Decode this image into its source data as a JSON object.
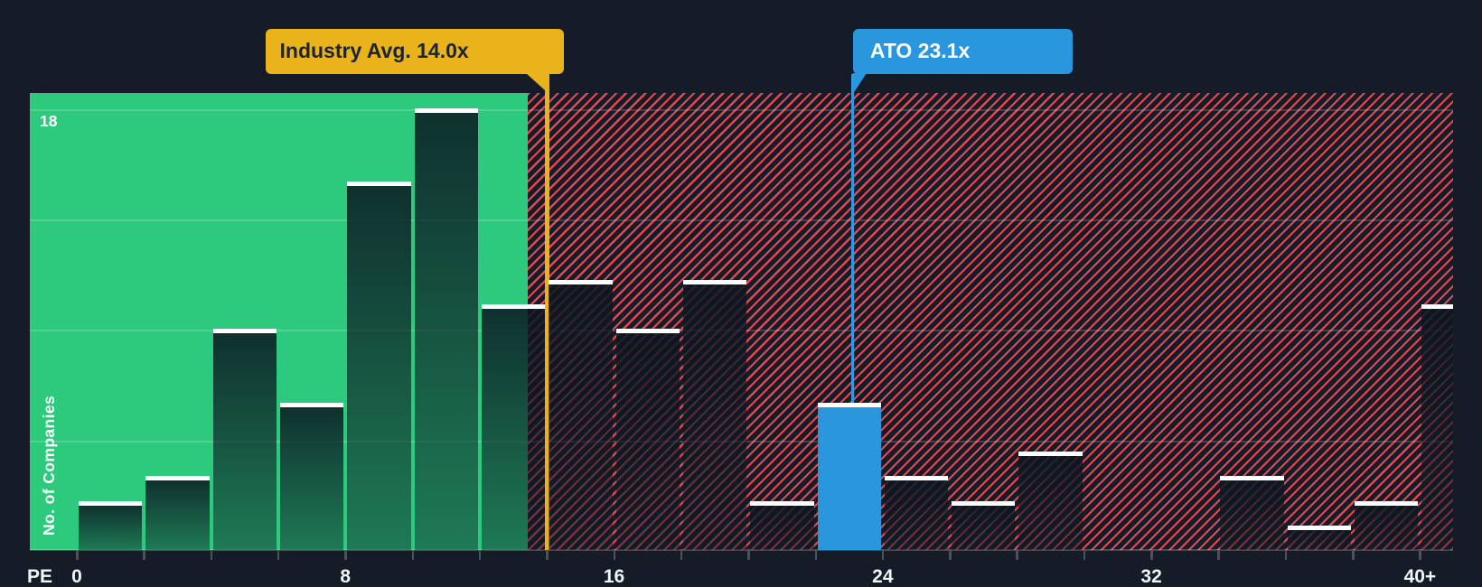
{
  "colors": {
    "background": "#151c28",
    "green_zone": "#2dc97c",
    "hatch_line_red": "#ee4b52",
    "bar_overlay_top": "rgba(10,22,33,0.85)",
    "bar_overlay_bottom": "rgba(12,26,36,0.45)",
    "bar_top_stroke": "#ffffff",
    "highlight_blue": "#2a96dd",
    "marker_yellow": "#eab31c",
    "callout_yellow_text": "#1b2433",
    "axis_text": "#f2f5f7",
    "tick_mark": "#49525e"
  },
  "y_axis": {
    "label": "No. of Companies",
    "top_label": "18",
    "max": 18
  },
  "x_axis": {
    "name": "PE",
    "minor_tick_step_pe": 2,
    "min_pe": 0,
    "max_pe": 40,
    "ticks": [
      {
        "label": "0",
        "pe": 0
      },
      {
        "label": "8",
        "pe": 8
      },
      {
        "label": "16",
        "pe": 16
      },
      {
        "label": "24",
        "pe": 24
      },
      {
        "label": "32",
        "pe": 32
      },
      {
        "label": "40+",
        "pe": 40
      }
    ]
  },
  "markers": {
    "industry": {
      "label": "Industry Avg. 14.0x",
      "pe": 14.0,
      "color": "#eab31c"
    },
    "company": {
      "label": "ATO 23.1x",
      "pe": 23.1,
      "color": "#2a96dd"
    }
  },
  "chart_data": {
    "type": "bar",
    "subtype": "histogram",
    "xlabel": "PE",
    "ylabel": "No. of Companies",
    "ylim": [
      0,
      18
    ],
    "bin_width_pe": 2,
    "gridline_values": [
      4.5,
      9,
      13.5,
      18
    ],
    "zones": [
      {
        "name": "below-industry-average",
        "style": "solid-green",
        "from_pe": -1.4,
        "to_pe": 13.43
      },
      {
        "name": "above-industry-average",
        "style": "red-hatched",
        "from_pe": 13.43,
        "to_pe": 41
      }
    ],
    "bins": [
      {
        "range": "0-2",
        "value": 2
      },
      {
        "range": "2-4",
        "value": 3
      },
      {
        "range": "4-6",
        "value": 9
      },
      {
        "range": "6-8",
        "value": 6
      },
      {
        "range": "8-10",
        "value": 15
      },
      {
        "range": "10-12",
        "value": 18
      },
      {
        "range": "12-14",
        "value": 10
      },
      {
        "range": "14-16",
        "value": 11
      },
      {
        "range": "16-18",
        "value": 9
      },
      {
        "range": "18-20",
        "value": 11
      },
      {
        "range": "20-22",
        "value": 2
      },
      {
        "range": "22-24",
        "value": 6,
        "highlight": true
      },
      {
        "range": "24-26",
        "value": 3
      },
      {
        "range": "26-28",
        "value": 2
      },
      {
        "range": "28-30",
        "value": 4
      },
      {
        "range": "30-32",
        "value": 0
      },
      {
        "range": "32-34",
        "value": 0
      },
      {
        "range": "34-36",
        "value": 3
      },
      {
        "range": "36-38",
        "value": 1
      },
      {
        "range": "38-40",
        "value": 2
      },
      {
        "range": "40+",
        "value": 10
      }
    ]
  }
}
